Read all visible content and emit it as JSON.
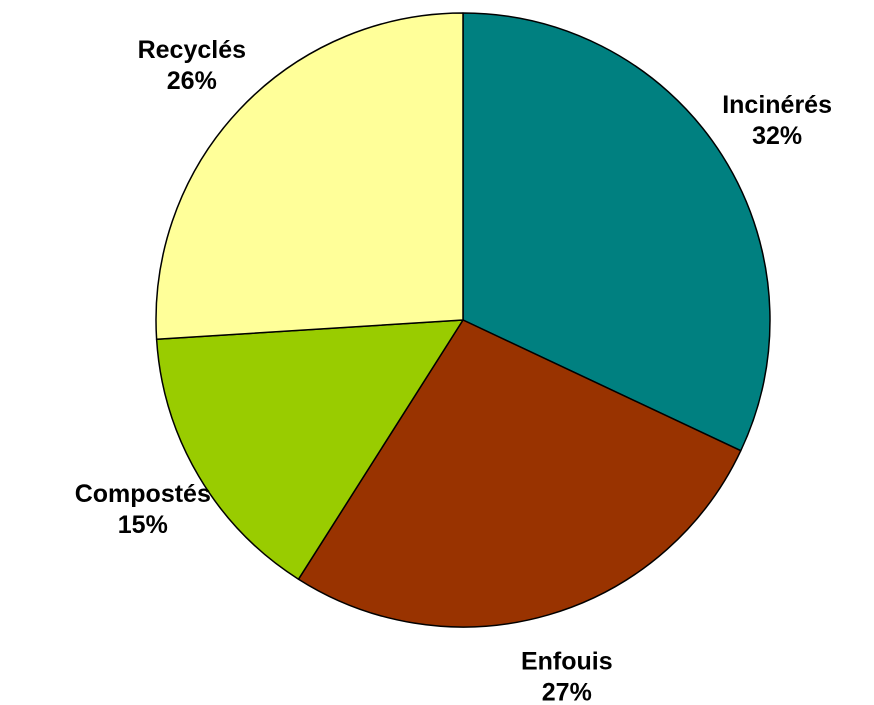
{
  "chart_data": {
    "type": "pie",
    "title": "",
    "categories": [
      "Incinérés",
      "Enfouis",
      "Compostés",
      "Recyclés"
    ],
    "values": [
      32,
      27,
      15,
      26
    ],
    "value_labels": [
      "32%",
      "27%",
      "15%",
      "26%"
    ],
    "colors": [
      "#008080",
      "#993300",
      "#99CC00",
      "#FFFF99"
    ],
    "start_angle_deg": 0,
    "direction": "clockwise",
    "legend": "none",
    "data_labels": "outside"
  }
}
